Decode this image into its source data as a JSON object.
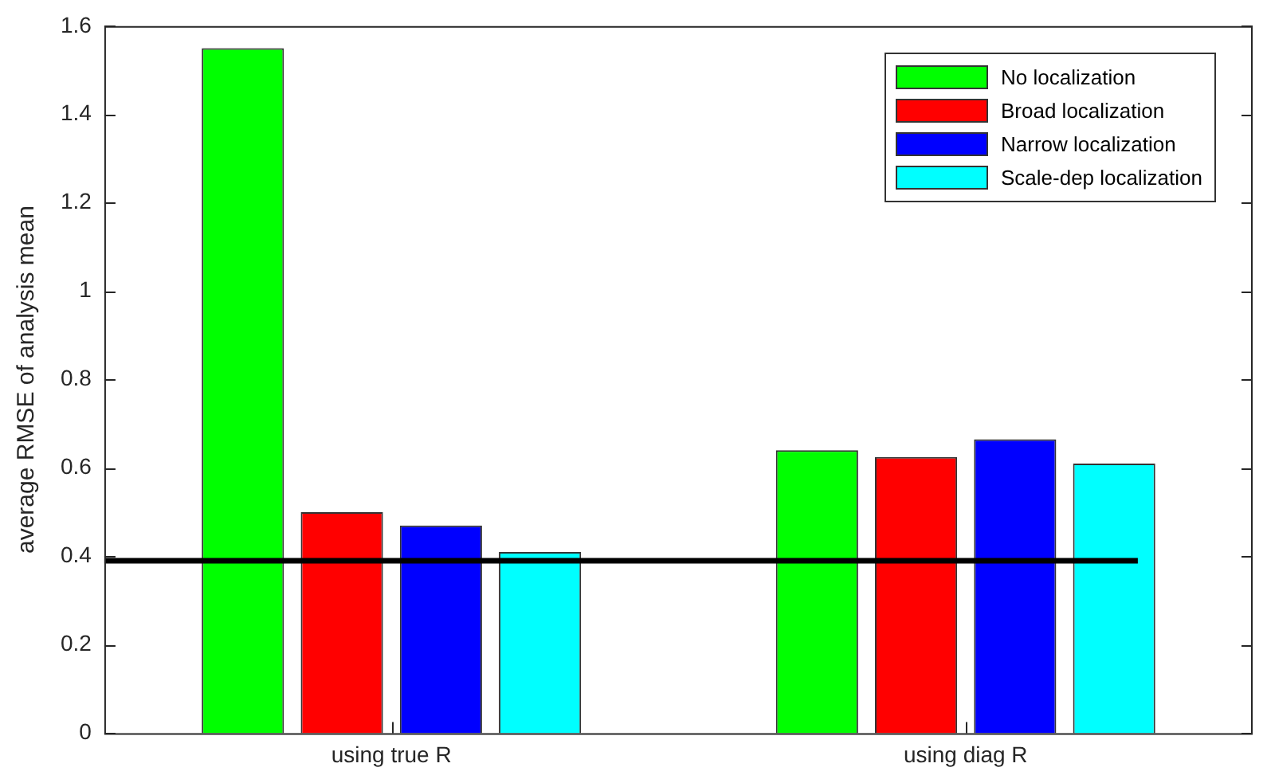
{
  "chart_data": {
    "type": "bar",
    "ylabel": "average RMSE of analysis mean",
    "categories": [
      "using true R",
      "using diag R"
    ],
    "series": [
      {
        "name": "No localization",
        "color": "#00ff00",
        "values": [
          1.55,
          0.64
        ]
      },
      {
        "name": "Broad localization",
        "color": "#ff0000",
        "values": [
          0.5,
          0.625
        ]
      },
      {
        "name": "Narrow localization",
        "color": "#0000ff",
        "values": [
          0.47,
          0.665
        ]
      },
      {
        "name": "Scale-dep localization",
        "color": "#00ffff",
        "values": [
          0.41,
          0.61
        ]
      }
    ],
    "ylim": [
      0,
      1.6
    ],
    "yticks": [
      0,
      0.2,
      0.4,
      0.6,
      0.8,
      1,
      1.2,
      1.4,
      1.6
    ],
    "ref_lines": [
      {
        "axis": "y",
        "value": 0.39,
        "color": "#000000"
      }
    ],
    "legend": "top right",
    "grid": false
  }
}
